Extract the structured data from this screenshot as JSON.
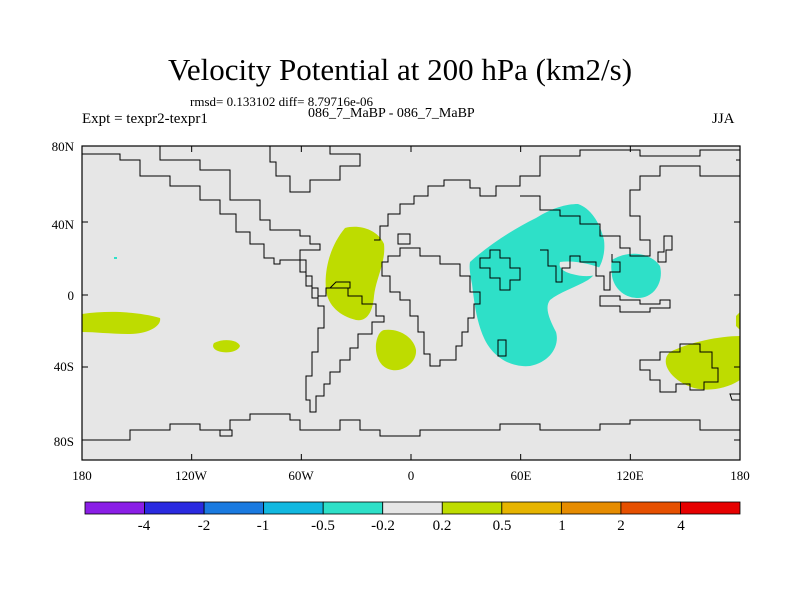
{
  "title": "Velocity Potential at 200 hPa (km2/s)",
  "stats": "rmsd= 0.133102 diff= 8.79716e-06",
  "expt": "Expt = texpr2-texpr1",
  "cases": "086_7_MaBP - 086_7_MaBP",
  "season": "JJA",
  "map": {
    "lon_ticks": [
      "180",
      "120W",
      "60W",
      "0",
      "60E",
      "120E",
      "180"
    ],
    "lat_ticks": [
      "80N",
      "40N",
      "0",
      "40S",
      "80S"
    ]
  },
  "colorbar": {
    "colors": [
      "#8a1ee6",
      "#2a2ae0",
      "#1a7ae0",
      "#12b8e0",
      "#2ee0c8",
      "#e6e6e6",
      "#bedc00",
      "#e6b400",
      "#e68c00",
      "#e65000",
      "#e60000"
    ],
    "labels": [
      "-4",
      "-2",
      "-1",
      "-0.5",
      "-0.2",
      "0.2",
      "0.5",
      "1",
      "2",
      "4"
    ]
  }
}
